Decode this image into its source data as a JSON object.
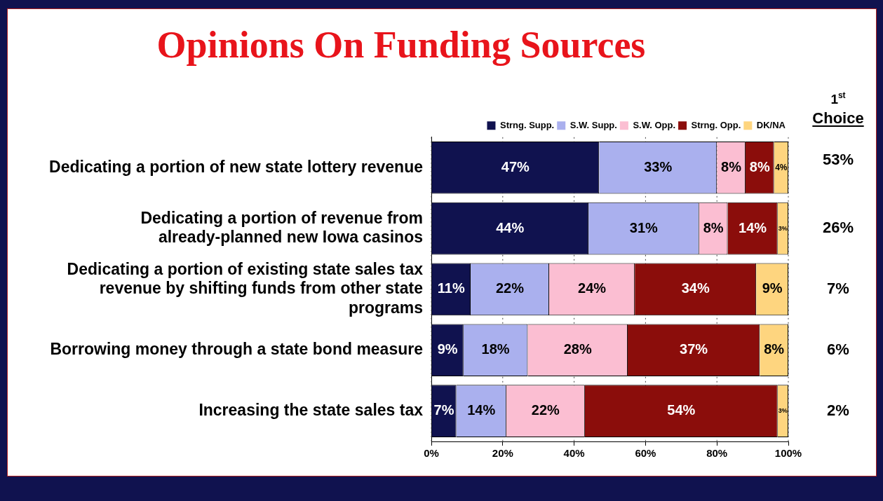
{
  "chart_data": {
    "type": "bar",
    "title": "Opinions On Funding Sources",
    "orientation": "horizontal",
    "stacked": true,
    "categories": [
      "Dedicating a portion of new state lottery revenue",
      "Dedicating a portion of revenue from already-planned new Iowa casinos",
      "Dedicating a portion of existing state sales tax revenue by shifting funds from other state programs",
      "Borrowing money through a state bond measure",
      "Increasing the state sales tax"
    ],
    "series": [
      {
        "name": "Strng. Supp.",
        "color": "#10124f",
        "values": [
          47,
          44,
          11,
          9,
          7
        ],
        "value_labels": [
          "47%",
          "44%",
          "11%",
          "9%",
          "7%"
        ]
      },
      {
        "name": "S.W. Supp.",
        "color": "#aab0ee",
        "values": [
          33,
          31,
          22,
          18,
          14
        ],
        "value_labels": [
          "33%",
          "31%",
          "22%",
          "18%",
          "14%"
        ]
      },
      {
        "name": "S.W. Opp.",
        "color": "#fbbed2",
        "values": [
          8,
          8,
          24,
          28,
          22
        ],
        "value_labels": [
          "8%",
          "8%",
          "24%",
          "28%",
          "22%"
        ]
      },
      {
        "name": "Strng. Opp.",
        "color": "#8b0d0b",
        "values": [
          8,
          14,
          34,
          37,
          54
        ],
        "value_labels": [
          "8%",
          "14%",
          "34%",
          "37%",
          "54%"
        ]
      },
      {
        "name": "DK/NA",
        "color": "#fed57f",
        "values": [
          4,
          3,
          9,
          8,
          3
        ],
        "value_labels": [
          "4%",
          "3%",
          "9%",
          "8%",
          "3%"
        ]
      }
    ],
    "xlim": [
      0,
      100
    ],
    "xticks": [
      {
        "value": 0,
        "label": "0%"
      },
      {
        "value": 20,
        "label": "20%"
      },
      {
        "value": 40,
        "label": "40%"
      },
      {
        "value": 60,
        "label": "60%"
      },
      {
        "value": 80,
        "label": "80%"
      },
      {
        "value": 100,
        "label": "100%"
      }
    ],
    "grid": "x",
    "legend": "top right",
    "annotations": [
      "1$^{st}$ Choice",
      "53%",
      "26%",
      "7%",
      "6%",
      "2%"
    ]
  }
}
